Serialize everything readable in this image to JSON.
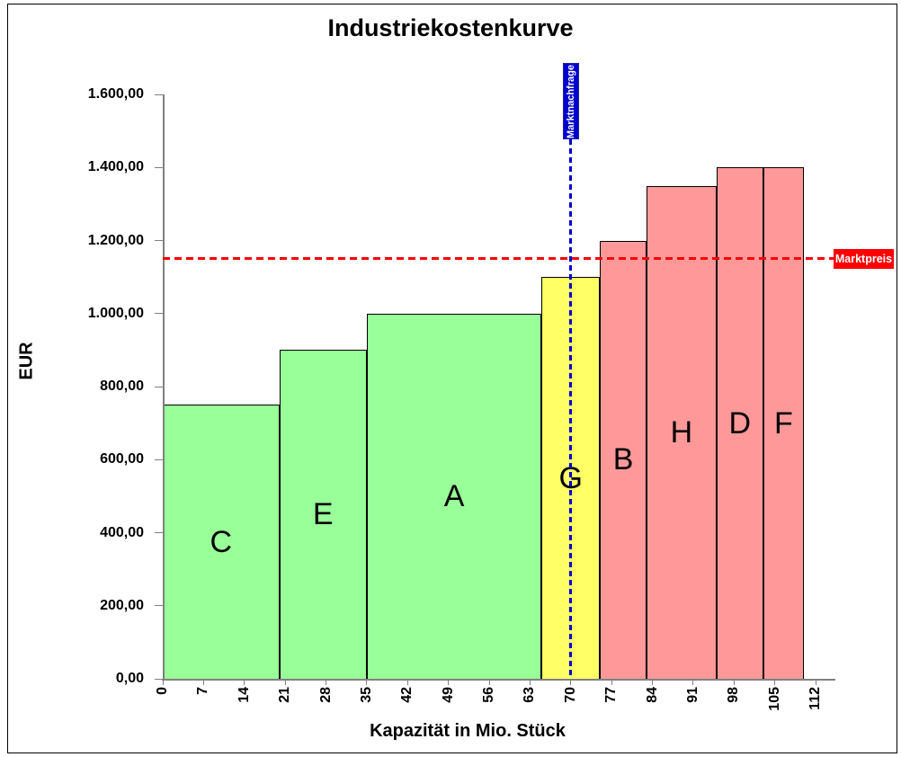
{
  "chart_data": {
    "type": "bar",
    "title": "Industriekostenkurve",
    "xlabel": "Kapazität in Mio. Stück",
    "ylabel": "EUR",
    "xlim": [
      0,
      112
    ],
    "ylim": [
      0,
      1600
    ],
    "grid": "off",
    "legend": "none",
    "x_tick_values": [
      0,
      7,
      14,
      21,
      28,
      35,
      42,
      49,
      56,
      63,
      70,
      77,
      84,
      91,
      98,
      105,
      112
    ],
    "y_tick_values": [
      0,
      200,
      400,
      600,
      800,
      1000,
      1200,
      1400,
      1600
    ],
    "y_tick_labels": [
      "0,00",
      "200,00",
      "400,00",
      "600,00",
      "800,00",
      "1.000,00",
      "1.200,00",
      "1.400,00",
      "1.600,00"
    ],
    "bars": [
      {
        "label": "C",
        "start": 0,
        "end": 20,
        "value": 750,
        "fill": "#99FF99"
      },
      {
        "label": "E",
        "start": 20,
        "end": 35,
        "value": 900,
        "fill": "#99FF99"
      },
      {
        "label": "A",
        "start": 35,
        "end": 65,
        "value": 1000,
        "fill": "#99FF99"
      },
      {
        "label": "G",
        "start": 65,
        "end": 75,
        "value": 1100,
        "fill": "#FFFF66"
      },
      {
        "label": "B",
        "start": 75,
        "end": 83,
        "value": 1200,
        "fill": "#FF9999"
      },
      {
        "label": "H",
        "start": 83,
        "end": 95,
        "value": 1350,
        "fill": "#FF9999"
      },
      {
        "label": "D",
        "start": 95,
        "end": 103,
        "value": 1400,
        "fill": "#FF9999"
      },
      {
        "label": "F",
        "start": 103,
        "end": 110,
        "value": 1400,
        "fill": "#FF9999"
      }
    ],
    "reference_lines": [
      {
        "id": "demand",
        "label": "Marktnachfrage",
        "axis": "x",
        "value": 70,
        "color": "#0000CC"
      },
      {
        "id": "price",
        "label": "Marktpreis",
        "axis": "y",
        "value": 1150,
        "color": "#FF0000"
      }
    ],
    "colors": {
      "low_cost_bar": "#99FF99",
      "marginal_bar": "#FFFF66",
      "above_price_bar": "#FF9999",
      "demand_line": "#0000CC",
      "price_line": "#FF0000",
      "axis": "#808080"
    }
  }
}
